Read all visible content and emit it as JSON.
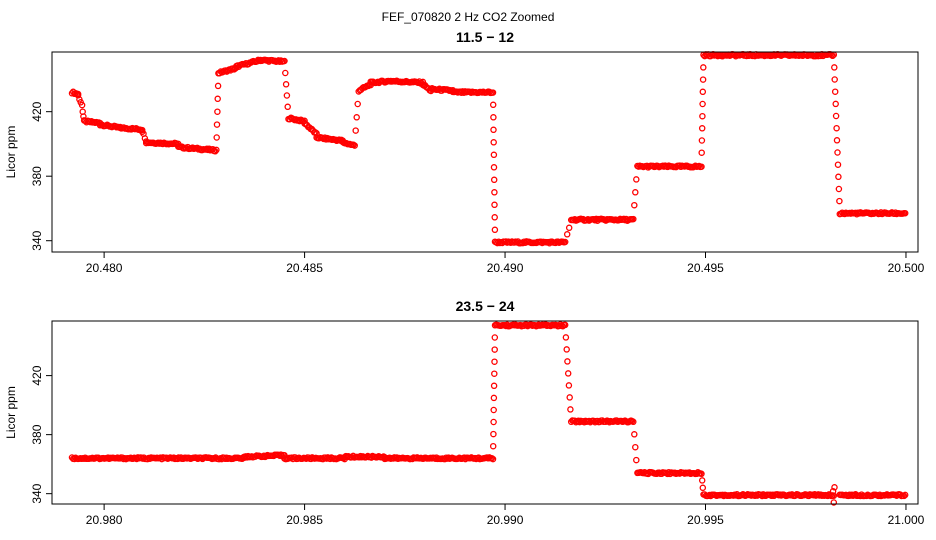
{
  "figure_title": "FEF_070820  2 Hz CO2 Zoomed",
  "colors": {
    "points": "#ff0000",
    "axis": "#000000"
  },
  "chart_data": [
    {
      "type": "scatter",
      "title": "11.5 − 12",
      "xlabel": "",
      "ylabel": "Licor ppm",
      "xlim": [
        20.4787,
        20.5003
      ],
      "ylim": [
        333,
        457
      ],
      "xticks": [
        20.48,
        20.485,
        20.49,
        20.495,
        20.5
      ],
      "xtick_labels": [
        "20.480",
        "20.485",
        "20.490",
        "20.495",
        "20.500"
      ],
      "yticks": [
        340,
        380,
        420
      ],
      "ytick_labels": [
        "340",
        "380",
        "420"
      ],
      "marker": "open-circle",
      "segments": [
        [
          20.4792,
          20.47935,
          432,
          431
        ],
        [
          20.47935,
          20.47945,
          430,
          424
        ],
        [
          20.4795,
          20.4799,
          414,
          413
        ],
        [
          20.4799,
          20.4804,
          412,
          410
        ],
        [
          20.4804,
          20.48095,
          410,
          409
        ],
        [
          20.48095,
          20.48105,
          408,
          402
        ],
        [
          20.48105,
          20.48185,
          401,
          400
        ],
        [
          20.48185,
          20.4828,
          398,
          396
        ],
        [
          20.48285,
          20.4833,
          444,
          447
        ],
        [
          20.4833,
          20.4839,
          448,
          452
        ],
        [
          20.4839,
          20.4845,
          452,
          451
        ],
        [
          20.4846,
          20.485,
          416,
          414
        ],
        [
          20.485,
          20.4853,
          413,
          406
        ],
        [
          20.4853,
          20.48595,
          404,
          402
        ],
        [
          20.48595,
          20.48625,
          401,
          399
        ],
        [
          20.48635,
          20.48665,
          433,
          437
        ],
        [
          20.48665,
          20.48715,
          438,
          439
        ],
        [
          20.48715,
          20.48795,
          439,
          438
        ],
        [
          20.48795,
          20.48815,
          437,
          433
        ],
        [
          20.48815,
          20.4887,
          434,
          433
        ],
        [
          20.4887,
          20.4897,
          432,
          432
        ],
        [
          20.48975,
          20.4915,
          339,
          339
        ],
        [
          20.49165,
          20.4932,
          353,
          353
        ],
        [
          20.4933,
          20.4949,
          386,
          386
        ],
        [
          20.49495,
          20.4982,
          455,
          455
        ],
        [
          20.49835,
          20.49998,
          357,
          357
        ]
      ],
      "transitions": [
        [
          20.47945,
          20.4795,
          423,
          414
        ],
        [
          20.4828,
          20.48285,
          396,
          444
        ],
        [
          20.4845,
          20.4846,
          451,
          416
        ],
        [
          20.48625,
          20.48635,
          400,
          433
        ],
        [
          20.4897,
          20.48975,
          432,
          339
        ],
        [
          20.4915,
          20.49165,
          340,
          352
        ],
        [
          20.4932,
          20.4933,
          354,
          386
        ],
        [
          20.4949,
          20.49495,
          387,
          455
        ],
        [
          20.4982,
          20.49835,
          455,
          357
        ]
      ]
    },
    {
      "type": "scatter",
      "title": "23.5 − 24",
      "xlabel": "",
      "ylabel": "Licor ppm",
      "xlim": [
        20.9787,
        21.0003
      ],
      "ylim": [
        333,
        457
      ],
      "xticks": [
        20.98,
        20.985,
        20.99,
        20.995,
        21.0
      ],
      "xtick_labels": [
        "20.980",
        "20.985",
        "20.990",
        "20.995",
        "21.000"
      ],
      "yticks": [
        340,
        380,
        420
      ],
      "ytick_labels": [
        "340",
        "380",
        "420"
      ],
      "marker": "open-circle",
      "segments": [
        [
          20.9792,
          20.9835,
          364,
          364
        ],
        [
          20.9835,
          20.9845,
          365,
          366
        ],
        [
          20.9845,
          20.986,
          364,
          364
        ],
        [
          20.986,
          20.987,
          365,
          365
        ],
        [
          20.987,
          20.9897,
          364,
          364
        ],
        [
          20.98975,
          20.9915,
          454,
          454
        ],
        [
          20.99165,
          20.9932,
          389,
          389
        ],
        [
          20.9933,
          20.9949,
          354,
          354
        ],
        [
          20.99495,
          20.9982,
          339,
          339
        ],
        [
          20.99835,
          20.99998,
          339,
          339
        ]
      ],
      "transitions": [
        [
          20.9897,
          20.98975,
          364,
          454
        ],
        [
          20.9915,
          20.99165,
          454,
          389
        ],
        [
          20.9932,
          20.9933,
          389,
          354
        ],
        [
          20.9949,
          20.99495,
          354,
          339
        ],
        [
          20.99815,
          20.99825,
          339,
          347
        ]
      ],
      "outliers": [
        [
          20.9982,
          334
        ]
      ]
    }
  ]
}
